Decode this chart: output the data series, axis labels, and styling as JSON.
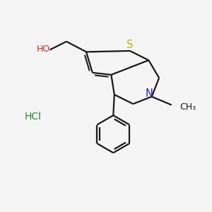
{
  "bg_color": "#f5f5f5",
  "line_color": "#1a1a1a",
  "S_color": "#b8b800",
  "N_color": "#2222cc",
  "O_color": "#cc2222",
  "HCl_color": "#228B22",
  "bond_lw": 1.6,
  "figsize": [
    3.0,
    3.0
  ],
  "dpi": 100,
  "xlim": [
    0,
    10
  ],
  "ylim": [
    0,
    10
  ]
}
